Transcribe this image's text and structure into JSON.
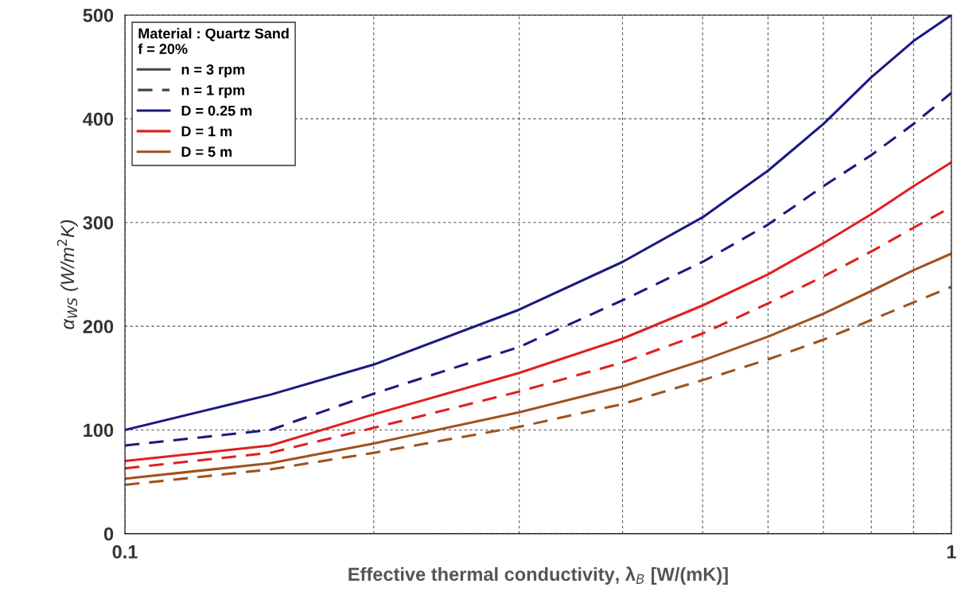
{
  "chart_data": {
    "type": "line",
    "xlabel": "Effective thermal conductivity, λ$_{B}$ [W/(mK)]",
    "ylabel": "α$_{WS}$ (W/m$^{2}$K)",
    "x": [
      0.1,
      0.15,
      0.2,
      0.3,
      0.4,
      0.5,
      0.6,
      0.7,
      0.8,
      0.9,
      1
    ],
    "log": "x",
    "xlim": [
      0.1,
      1
    ],
    "xticks": [
      0.1,
      {
        "value": 0.2,
        "label": null
      },
      {
        "value": 0.3,
        "label": null
      },
      {
        "value": 0.4,
        "label": null
      },
      {
        "value": 0.5,
        "label": null
      },
      {
        "value": 0.6,
        "label": null
      },
      {
        "value": 0.7,
        "label": null
      },
      {
        "value": 0.8,
        "label": null
      },
      {
        "value": 0.9,
        "label": null
      },
      1
    ],
    "ylim": [
      0,
      500
    ],
    "yticks": [
      0,
      100,
      200,
      300,
      400,
      500
    ],
    "grid": true,
    "legend": "top left",
    "legend_title": "Material : Quartz Sand\nf = 20%",
    "annotations": [
      "n = 3 rpm",
      "n = 1 rpm"
    ],
    "series": [
      {
        "name": "D = 0.25 m",
        "color": "#1a1a80",
        "line_style": "solid",
        "values": [
          100,
          134,
          163,
          216,
          262,
          305,
          350,
          395,
          440,
          475,
          500
        ]
      },
      {
        "color": "#1a1a80",
        "line_style": "dashed",
        "values": [
          85,
          100,
          135,
          180,
          225,
          262,
          298,
          335,
          365,
          395,
          425
        ]
      },
      {
        "name": "D = 1 m",
        "color": "#e02020",
        "line_style": "solid",
        "values": [
          70,
          85,
          115,
          155,
          188,
          220,
          250,
          280,
          308,
          335,
          358
        ]
      },
      {
        "color": "#e02020",
        "line_style": "dashed",
        "values": [
          63,
          78,
          102,
          137,
          165,
          193,
          222,
          248,
          272,
          295,
          315
        ]
      },
      {
        "name": "D = 5 m",
        "color": "#a0521e",
        "line_style": "solid",
        "values": [
          53,
          68,
          87,
          117,
          142,
          167,
          190,
          212,
          234,
          254,
          270
        ]
      },
      {
        "color": "#a0521e",
        "line_style": "dashed",
        "values": [
          47,
          62,
          78,
          103,
          125,
          148,
          168,
          187,
          206,
          223,
          238
        ]
      }
    ]
  }
}
